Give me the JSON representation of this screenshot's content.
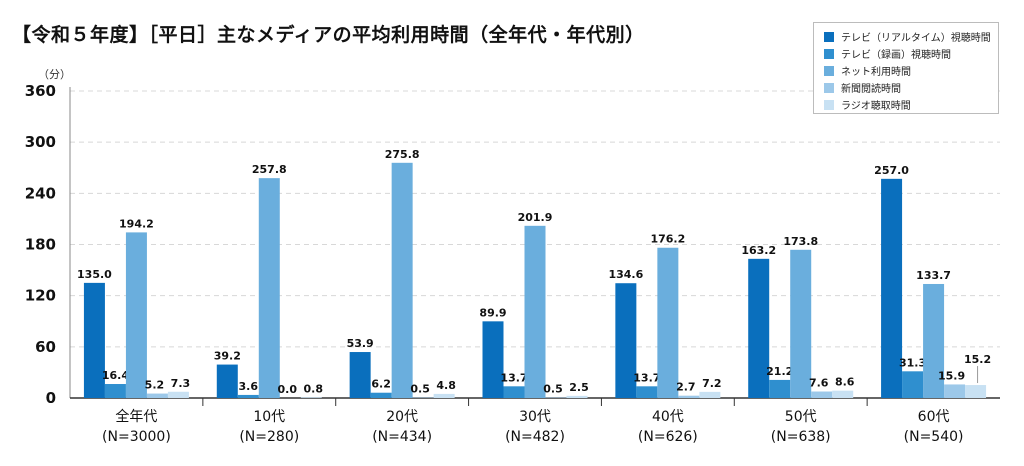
{
  "title": "【令和５年度】［平日］主なメディアの平均利用時間（全年代・年代別）",
  "unit": "（分）",
  "colors": [
    "#0a6fbd",
    "#2f8fcf",
    "#6aaedd",
    "#9cc8e9",
    "#c8e1f3"
  ],
  "chart_data": {
    "type": "bar",
    "ylim": [
      0,
      360
    ],
    "yticks": [
      0,
      60,
      120,
      180,
      240,
      300,
      360
    ],
    "ylabel": "（分）",
    "grid": true,
    "legend_position": "top-right",
    "categories": [
      [
        "全年代",
        "(N=3000)"
      ],
      [
        "10代",
        "(N=280)"
      ],
      [
        "20代",
        "(N=434)"
      ],
      [
        "30代",
        "(N=482)"
      ],
      [
        "40代",
        "(N=626)"
      ],
      [
        "50代",
        "(N=638)"
      ],
      [
        "60代",
        "(N=540)"
      ]
    ],
    "series": [
      {
        "name": "テレビ（リアルタイム）視聴時間",
        "values": [
          135.0,
          39.2,
          53.9,
          89.9,
          134.6,
          163.2,
          257.0
        ]
      },
      {
        "name": "テレビ（録画）視聴時間",
        "values": [
          16.4,
          3.6,
          6.2,
          13.7,
          13.7,
          21.2,
          31.3
        ]
      },
      {
        "name": "ネット利用時間",
        "values": [
          194.2,
          257.8,
          275.8,
          201.9,
          176.2,
          173.8,
          133.7
        ]
      },
      {
        "name": "新聞閲読時間",
        "values": [
          5.2,
          0.0,
          0.5,
          0.5,
          2.7,
          7.6,
          15.9
        ]
      },
      {
        "name": "ラジオ聴取時間",
        "values": [
          7.3,
          0.8,
          4.8,
          2.5,
          7.2,
          8.6,
          15.2
        ]
      }
    ]
  }
}
